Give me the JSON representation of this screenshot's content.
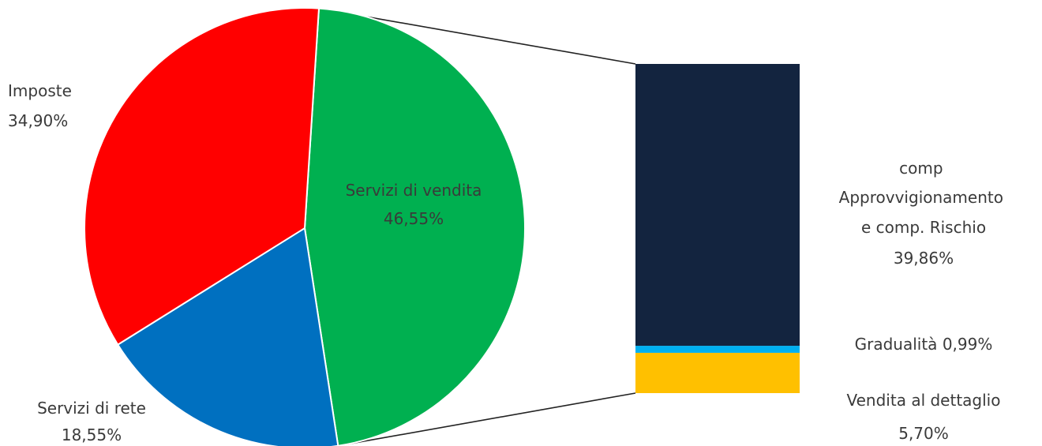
{
  "chart_data": {
    "type": "pie",
    "title": "",
    "pie": {
      "slices": [
        {
          "label": "Servizi di vendita",
          "value": 46.55,
          "display": "46,55%",
          "color": "#00B050"
        },
        {
          "label": "Servizi di rete",
          "value": 18.55,
          "display": "18,55%",
          "color": "#0070C0"
        },
        {
          "label": "Imposte",
          "value": 34.9,
          "display": "34,90%",
          "color": "#FF0000"
        }
      ]
    },
    "breakdown": {
      "of_slice": "Servizi di vendita",
      "type": "stacked-bar",
      "segments": [
        {
          "label": "Vendita al dettaglio",
          "value": 5.7,
          "display": "5,70%",
          "color": "#FFC000"
        },
        {
          "label": "Gradualità",
          "value": 0.99,
          "display": "0,99%",
          "color": "#00B0F0"
        },
        {
          "label": "comp Approvvigionamento e comp. Rischio",
          "value": 39.86,
          "display": "39,86%",
          "color": "#13243F"
        }
      ]
    }
  }
}
